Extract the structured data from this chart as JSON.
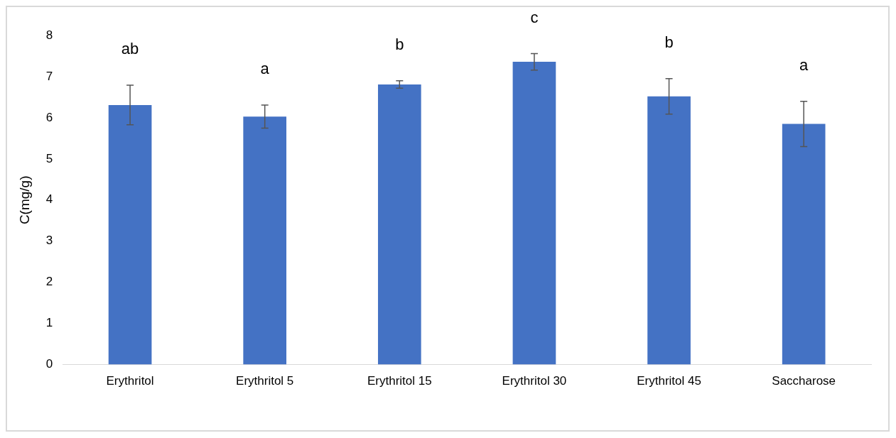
{
  "chart_data": {
    "type": "bar",
    "ylabel": "C(mg/g)",
    "categories": [
      "Erythritol",
      "Erythritol 5",
      "Erythritol 15",
      "Erythritol 30",
      "Erythritol 45",
      "Saccharose"
    ],
    "values": [
      6.31,
      6.03,
      6.81,
      7.36,
      6.52,
      5.85
    ],
    "errors": [
      0.48,
      0.28,
      0.09,
      0.2,
      0.43,
      0.55
    ],
    "color": "#4472c4",
    "ylim": [
      0,
      8
    ],
    "yticks": [
      0,
      1,
      2,
      3,
      4,
      5,
      6,
      7,
      8
    ],
    "grid": false,
    "legend": false,
    "annotations": [
      "ab",
      "a",
      "b",
      "c",
      "b",
      "a"
    ]
  }
}
